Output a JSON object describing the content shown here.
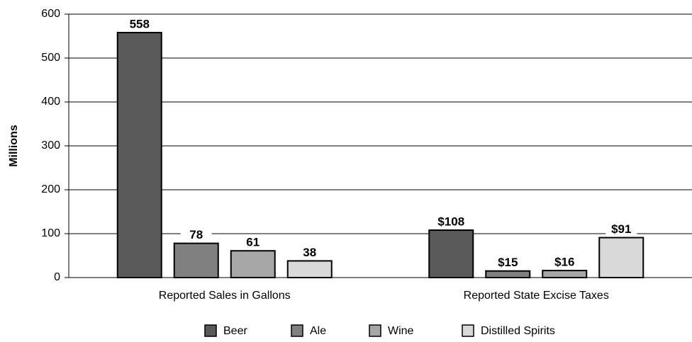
{
  "chart_data": {
    "type": "bar",
    "y_label": "Millions",
    "categories": [
      "Reported Sales in Gallons",
      "Reported State Excise Taxes"
    ],
    "series": [
      {
        "name": "Beer",
        "color": "#595959",
        "values": [
          558,
          108
        ],
        "value_labels": [
          "558",
          "$108"
        ]
      },
      {
        "name": "Ale",
        "color": "#808080",
        "values": [
          78,
          15
        ],
        "value_labels": [
          "78",
          "$15"
        ]
      },
      {
        "name": "Wine",
        "color": "#a6a6a6",
        "values": [
          61,
          16
        ],
        "value_labels": [
          "61",
          "$16"
        ]
      },
      {
        "name": "Distilled Spirits",
        "color": "#d9d9d9",
        "values": [
          38,
          91
        ],
        "value_labels": [
          "38",
          "$91"
        ]
      }
    ],
    "ylim": [
      0,
      600
    ],
    "yticks": [
      0,
      100,
      200,
      300,
      400,
      500,
      600
    ],
    "grid": true,
    "legend": "bottom"
  }
}
